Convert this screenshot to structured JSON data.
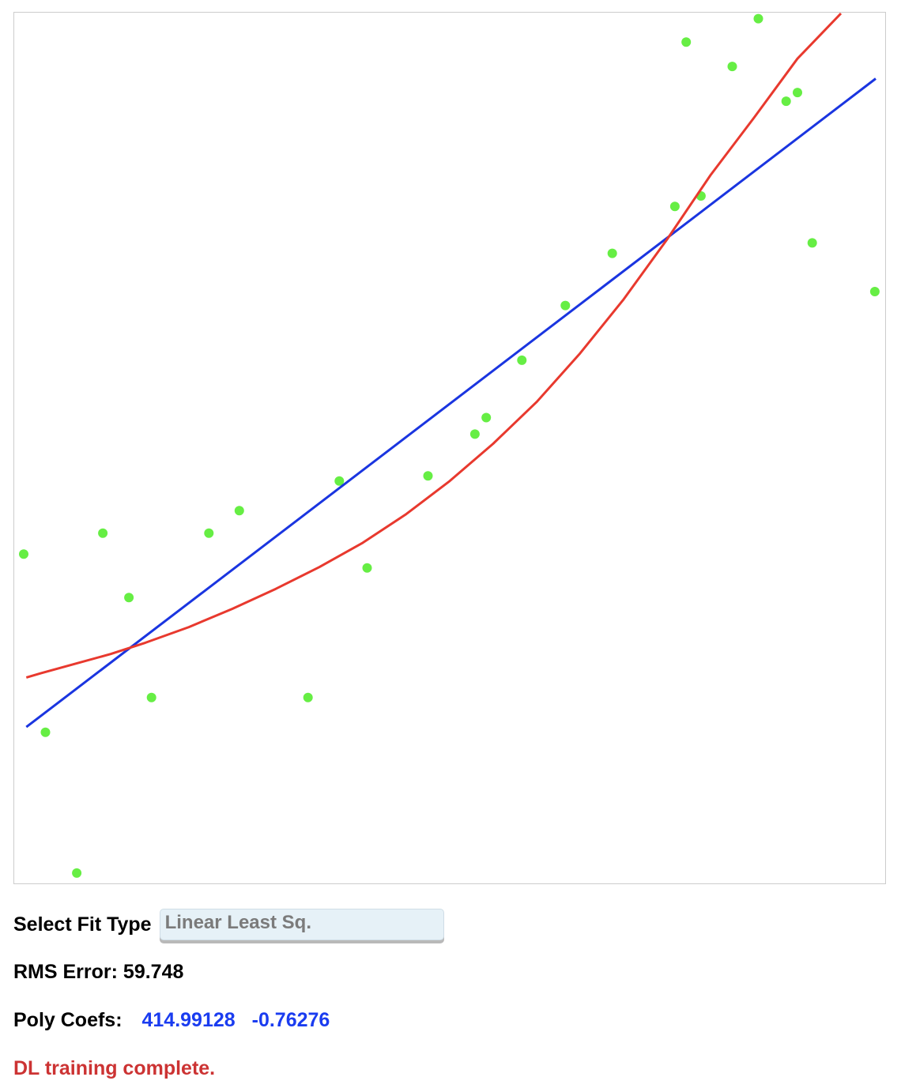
{
  "controls": {
    "fit_type_label": "Select Fit Type",
    "fit_type_selected": "Linear Least Sq."
  },
  "results": {
    "rms_label": "RMS Error:",
    "rms_value": "59.748",
    "coefs_label": "Poly Coefs:",
    "coefs": [
      "414.99128",
      "-0.76276"
    ]
  },
  "status": {
    "message": "DL training complete."
  },
  "colors": {
    "points": "#66ee44",
    "linear_fit": "#1a35e0",
    "dl_fit": "#e8392e",
    "coefs_text": "#1a3cf0",
    "status_text": "#cc3333",
    "plot_border": "#cccccc"
  },
  "chart_data": {
    "type": "scatter",
    "title": "",
    "xlabel": "",
    "ylabel": "",
    "xlim": [
      0,
      1000
    ],
    "ylim": [
      0,
      1000
    ],
    "grid": false,
    "axes_visible": false,
    "points": [
      {
        "x": 10,
        "y": 378
      },
      {
        "x": 35,
        "y": 173
      },
      {
        "x": 71,
        "y": 11
      },
      {
        "x": 101,
        "y": 402
      },
      {
        "x": 131,
        "y": 328
      },
      {
        "x": 157,
        "y": 213
      },
      {
        "x": 223,
        "y": 402
      },
      {
        "x": 258,
        "y": 428
      },
      {
        "x": 337,
        "y": 213
      },
      {
        "x": 373,
        "y": 462
      },
      {
        "x": 405,
        "y": 362
      },
      {
        "x": 475,
        "y": 468
      },
      {
        "x": 529,
        "y": 516
      },
      {
        "x": 542,
        "y": 535
      },
      {
        "x": 583,
        "y": 601
      },
      {
        "x": 633,
        "y": 664
      },
      {
        "x": 687,
        "y": 724
      },
      {
        "x": 759,
        "y": 778
      },
      {
        "x": 772,
        "y": 967
      },
      {
        "x": 789,
        "y": 790
      },
      {
        "x": 825,
        "y": 939
      },
      {
        "x": 855,
        "y": 994
      },
      {
        "x": 887,
        "y": 899
      },
      {
        "x": 900,
        "y": 909
      },
      {
        "x": 917,
        "y": 736
      },
      {
        "x": 989,
        "y": 680
      }
    ],
    "series": [
      {
        "values": [
          [
            13,
            179
          ],
          [
            990,
            925
          ]
        ]
      },
      {
        "values": [
          [
            13,
            236
          ],
          [
            30,
            241
          ],
          [
            70,
            252
          ],
          [
            110,
            263
          ],
          [
            150,
            276
          ],
          [
            200,
            294
          ],
          [
            250,
            315
          ],
          [
            300,
            338
          ],
          [
            350,
            363
          ],
          [
            400,
            391
          ],
          [
            450,
            424
          ],
          [
            500,
            462
          ],
          [
            550,
            505
          ],
          [
            600,
            553
          ],
          [
            650,
            609
          ],
          [
            700,
            671
          ],
          [
            750,
            740
          ],
          [
            800,
            814
          ],
          [
            850,
            880
          ],
          [
            900,
            948
          ],
          [
            950,
            1000
          ]
        ]
      }
    ]
  }
}
